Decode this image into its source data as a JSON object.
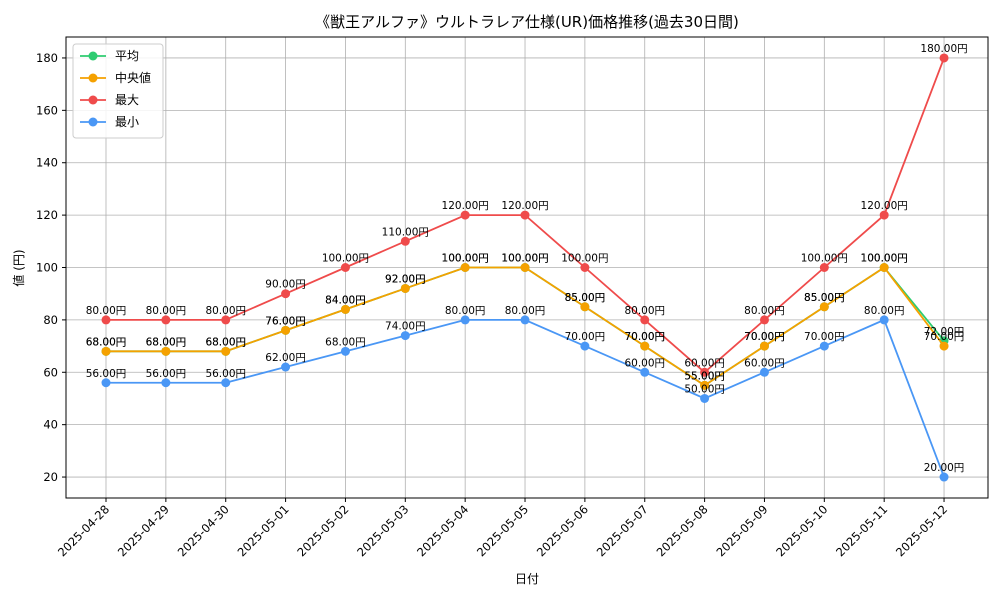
{
  "chart_data": {
    "type": "line",
    "title": "《獣王アルファ》ウルトラレア仕様(UR)価格推移(過去30日間)",
    "xlabel": "日付",
    "ylabel": "値 (円)",
    "ylim": [
      12,
      188
    ],
    "yticks": [
      20,
      40,
      60,
      80,
      100,
      120,
      140,
      160,
      180
    ],
    "grid": true,
    "legend_position": "top-left",
    "label_suffix": "円",
    "categories": [
      "2025-04-28",
      "2025-04-29",
      "2025-04-30",
      "2025-05-01",
      "2025-05-02",
      "2025-05-03",
      "2025-05-04",
      "2025-05-05",
      "2025-05-06",
      "2025-05-07",
      "2025-05-08",
      "2025-05-09",
      "2025-05-10",
      "2025-05-11",
      "2025-05-12"
    ],
    "series": [
      {
        "name": "平均",
        "color": "#2ecc71",
        "values": [
          68,
          68,
          68,
          76,
          84,
          92,
          100,
          100,
          85,
          70,
          55,
          70,
          85,
          100,
          72
        ]
      },
      {
        "name": "中央値",
        "color": "#f5a100",
        "values": [
          68,
          68,
          68,
          76,
          84,
          92,
          100,
          100,
          85,
          70,
          55,
          70,
          85,
          100,
          70
        ]
      },
      {
        "name": "最大",
        "color": "#ef4b4b",
        "values": [
          80,
          80,
          80,
          90,
          100,
          110,
          120,
          120,
          100,
          80,
          60,
          80,
          100,
          120,
          180
        ]
      },
      {
        "name": "最小",
        "color": "#4a97f5",
        "values": [
          56,
          56,
          56,
          62,
          68,
          74,
          80,
          80,
          70,
          60,
          50,
          60,
          70,
          80,
          20
        ]
      }
    ]
  }
}
